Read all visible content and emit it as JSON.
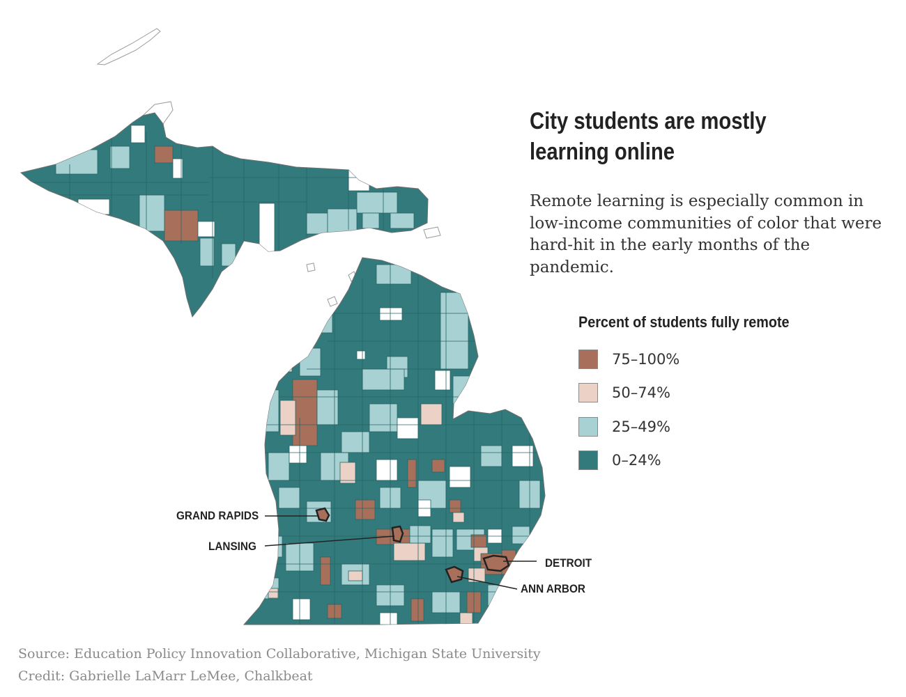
{
  "title": "City students are mostly learning online",
  "subtitle": "Remote learning is especially common in low-income communities of color that were hard-hit in the early months of the pandemic.",
  "legend": {
    "title": "Percent of students fully remote",
    "items": [
      {
        "label": "75–100%",
        "color": "#a8705a"
      },
      {
        "label": "50–74%",
        "color": "#ecd2c6"
      },
      {
        "label": "25–49%",
        "color": "#a7d1d3"
      },
      {
        "label": "0–24%",
        "color": "#327a7c"
      }
    ]
  },
  "cities": [
    {
      "name": "GRAND RAPIDS"
    },
    {
      "name": "LANSING"
    },
    {
      "name": "DETROIT"
    },
    {
      "name": "ANN ARBOR"
    }
  ],
  "footer": {
    "source": "Source: Education Policy Innovation Collaborative, Michigan State University",
    "credit": "Credit: Gabrielle LaMarr LeMee, Chalkbeat"
  }
}
